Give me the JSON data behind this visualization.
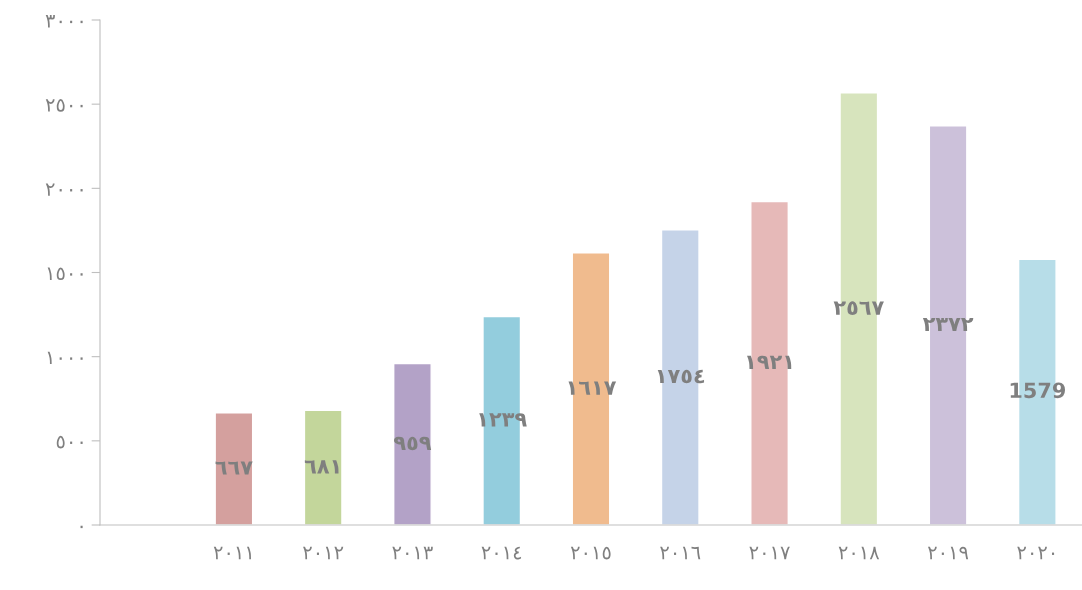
{
  "chart_data": {
    "type": "bar",
    "categories": [
      null,
      "٢٠١١",
      "٢٠١٢",
      "٢٠١٣",
      "٢٠١٤",
      "٢٠١٥",
      "٢٠١٦",
      "٢٠١٧",
      "٢٠١٨",
      "٢٠١٩",
      "٢٠٢٠"
    ],
    "values": [
      null,
      667,
      681,
      959,
      1239,
      1617,
      1754,
      1921,
      2567,
      2372,
      1579
    ],
    "value_labels": [
      null,
      "٦٦٧",
      "٦٨١",
      "٩٥٩",
      "١٢٣٩",
      "١٦١٧",
      "١٧٥٤",
      "١٩٢١",
      "٢٥٦٧",
      "٢٣٧٢",
      "1579"
    ],
    "colors": [
      "#cccccc",
      "#d4a09e",
      "#c3d69b",
      "#b3a2c7",
      "#93cddd",
      "#f0bb8e",
      "#c5d3e8",
      "#e6b9b8",
      "#d7e4bd",
      "#ccc1da",
      "#b7dde8"
    ],
    "ylim": [
      0,
      3000
    ],
    "yticks": [
      {
        "value": 0,
        "label": "٠"
      },
      {
        "value": 500,
        "label": "٥٠٠"
      },
      {
        "value": 1000,
        "label": "١٠٠٠"
      },
      {
        "value": 1500,
        "label": "١٥٠٠"
      },
      {
        "value": 2000,
        "label": "٢٠٠٠"
      },
      {
        "value": 2500,
        "label": "٢٥٠٠"
      },
      {
        "value": 3000,
        "label": "٣٠٠٠"
      }
    ],
    "grid": false,
    "legend": false
  }
}
